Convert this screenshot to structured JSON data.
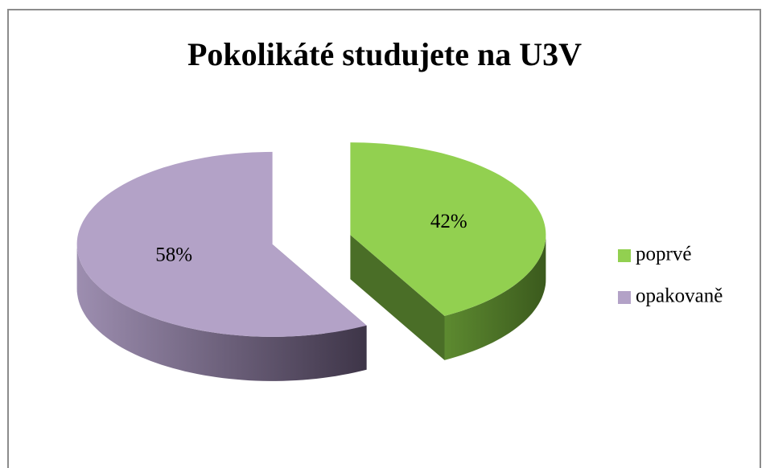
{
  "chart_data": {
    "type": "pie",
    "title": "Pokolikáté studujete na U3V",
    "categories": [
      "poprvé",
      "opakovaně"
    ],
    "values": [
      42,
      58
    ],
    "value_labels": [
      "42%",
      "58%"
    ],
    "colors": [
      "#92d050",
      "#b3a2c7"
    ],
    "legend": "right"
  }
}
